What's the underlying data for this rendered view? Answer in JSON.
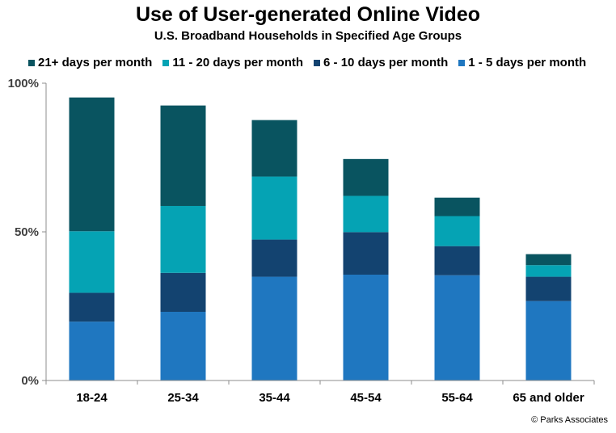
{
  "chart_data": {
    "type": "bar",
    "stacked": true,
    "title": "Use of User-generated Online Video",
    "subtitle": "U.S. Broadband Households in Specified Age Groups",
    "categories": [
      "18-24",
      "25-34",
      "35-44",
      "45-54",
      "55-64",
      "65 and older"
    ],
    "series": [
      {
        "name": "1 - 5 days per month",
        "color": "#1f77c0",
        "values": [
          19.8,
          23.1,
          34.9,
          35.6,
          35.4,
          26.7
        ]
      },
      {
        "name": "6 - 10 days per month",
        "color": "#134370",
        "values": [
          9.7,
          13.1,
          12.5,
          14.3,
          9.8,
          8.2
        ]
      },
      {
        "name": "11 - 20 days per month",
        "color": "#05a3b4",
        "values": [
          20.7,
          22.5,
          21.2,
          12.2,
          10.1,
          3.9
        ]
      },
      {
        "name": "21+ days per month",
        "color": "#095460",
        "values": [
          45.0,
          33.8,
          19.0,
          12.4,
          6.2,
          3.7
        ]
      }
    ],
    "legend_order": [
      {
        "name": "21+ days per month",
        "color": "#095460"
      },
      {
        "name": "11 - 20 days per month",
        "color": "#05a3b4"
      },
      {
        "name": "6 - 10 days per month",
        "color": "#134370"
      },
      {
        "name": "1 - 5 days per month",
        "color": "#1f77c0"
      }
    ],
    "y_ticks": [
      {
        "value": 0,
        "label": "0%"
      },
      {
        "value": 50,
        "label": "50%"
      },
      {
        "value": 100,
        "label": "100%"
      }
    ],
    "ylim": [
      0,
      100
    ],
    "xlabel": "",
    "ylabel": "",
    "grid": false,
    "legend_position": "top"
  },
  "footer": {
    "copyright": "© Parks Associates"
  }
}
